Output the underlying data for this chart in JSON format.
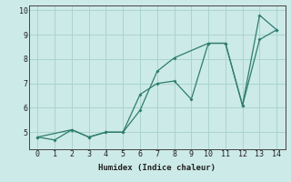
{
  "xlabel": "Humidex (Indice chaleur)",
  "xlim": [
    -0.5,
    14.5
  ],
  "ylim": [
    4.3,
    10.2
  ],
  "yticks": [
    5,
    6,
    7,
    8,
    9,
    10
  ],
  "xticks": [
    0,
    1,
    2,
    3,
    4,
    5,
    6,
    7,
    8,
    9,
    10,
    11,
    12,
    13,
    14
  ],
  "line1_x": [
    0,
    1,
    2,
    3,
    4,
    5,
    6,
    7,
    8,
    9,
    10,
    11,
    12,
    13,
    14
  ],
  "line1_y": [
    4.8,
    4.68,
    5.1,
    4.8,
    5.0,
    5.0,
    6.55,
    7.0,
    7.1,
    6.35,
    8.65,
    8.65,
    6.1,
    8.8,
    9.2
  ],
  "line2_x": [
    0,
    2,
    3,
    4,
    5,
    6,
    7,
    8,
    10,
    11,
    12,
    13,
    14
  ],
  "line2_y": [
    4.8,
    5.1,
    4.8,
    5.0,
    5.0,
    5.9,
    7.5,
    8.05,
    8.65,
    8.65,
    6.1,
    9.8,
    9.2
  ],
  "line_color": "#2e7d6e",
  "bg_color": "#cceae7",
  "grid_color": "#aad4d0",
  "font_family": "monospace"
}
